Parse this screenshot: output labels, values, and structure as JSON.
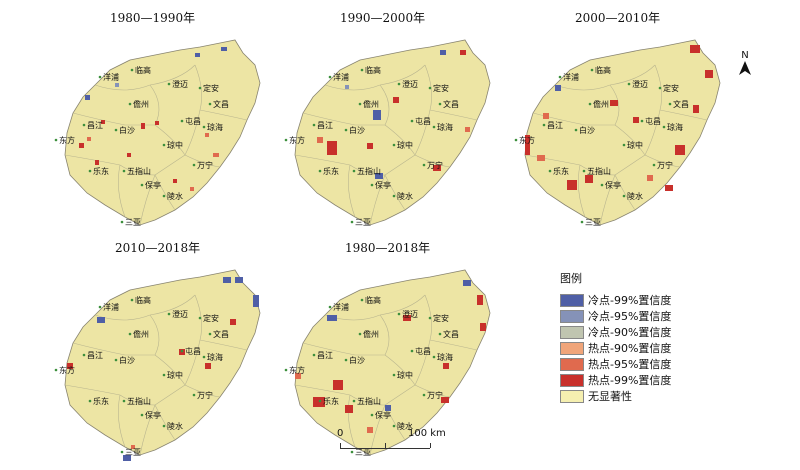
{
  "panels": [
    {
      "title": "1980—1990年"
    },
    {
      "title": "1990—2000年"
    },
    {
      "title": "2000—2010年"
    },
    {
      "title": "2010—2018年"
    },
    {
      "title": "1980—2018年"
    }
  ],
  "county_labels": [
    "临高",
    "澄迈",
    "定安",
    "文昌",
    "洋浦",
    "儋州",
    "屯昌",
    "琼海",
    "白沙",
    "琼中",
    "东方",
    "乐东",
    "五指山",
    "万宁",
    "保亭",
    "陵水",
    "三亚",
    "昌江"
  ],
  "legend": {
    "title": "图例",
    "items": [
      {
        "label": "冷点-99%置信度",
        "color": "#4f5fa6"
      },
      {
        "label": "冷点-95%置信度",
        "color": "#8592b8"
      },
      {
        "label": "冷点-90%置信度",
        "color": "#c0c5b0"
      },
      {
        "label": "热点-90%置信度",
        "color": "#f0a57a"
      },
      {
        "label": "热点-95%置信度",
        "color": "#e06a4e"
      },
      {
        "label": "热点-99%置信度",
        "color": "#c8302b"
      },
      {
        "label": "无显著性",
        "color": "#f5efb0"
      }
    ]
  },
  "north_label": "N",
  "scale": {
    "start": "0",
    "end": "100 km"
  },
  "colors": {
    "island_fill": "#ede5a4",
    "boundary": "#b9b58f",
    "outline": "#888470"
  }
}
